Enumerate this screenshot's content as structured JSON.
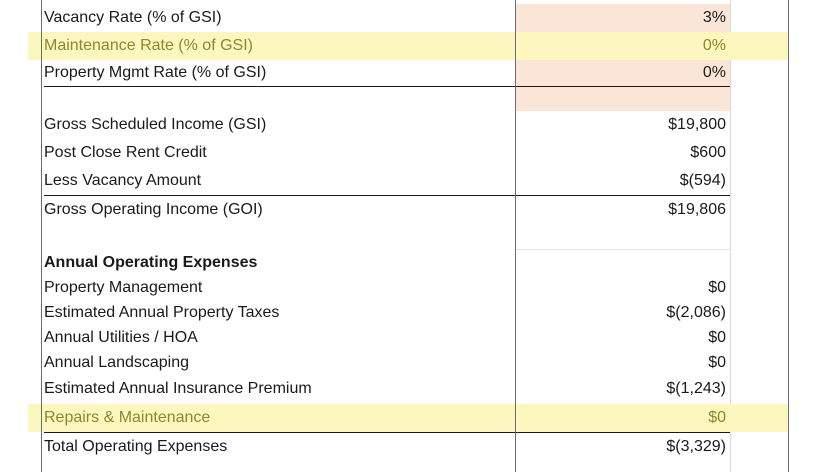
{
  "colors": {
    "highlight": "#fbf7bf",
    "input_tint": "#fbe5d6",
    "highlight_text": "#8a8a2a"
  },
  "rows": {
    "vacancy_rate": {
      "label": "Vacancy Rate (% of GSI)",
      "value": "3%"
    },
    "maintenance_rate": {
      "label": "Maintenance Rate (% of GSI)",
      "value": "0%"
    },
    "property_mgmt_rate": {
      "label": "Property Mgmt Rate (% of GSI)",
      "value": "0%"
    },
    "gsi": {
      "label": "Gross Scheduled Income (GSI)",
      "value": "$19,800"
    },
    "post_close_rent_credit": {
      "label": "Post Close Rent Credit",
      "value": "$600"
    },
    "less_vacancy": {
      "label": "Less Vacancy Amount",
      "value": "$(594)"
    },
    "goi": {
      "label": "Gross Operating Income (GOI)",
      "value": "$19,806"
    },
    "annual_opex_header": {
      "label": "Annual Operating Expenses",
      "value": ""
    },
    "property_management": {
      "label": "Property Management",
      "value": "$0"
    },
    "property_taxes": {
      "label": "Estimated Annual Property Taxes",
      "value": "$(2,086)"
    },
    "utilities_hoa": {
      "label": "Annual Utilities / HOA",
      "value": "$0"
    },
    "landscaping": {
      "label": "Annual Landscaping",
      "value": "$0"
    },
    "insurance": {
      "label": "Estimated Annual Insurance Premium",
      "value": "$(1,243)"
    },
    "repairs": {
      "label": "Repairs & Maintenance",
      "value": "$0"
    },
    "total_opex": {
      "label": "Total Operating Expenses",
      "value": "$(3,329)"
    }
  }
}
